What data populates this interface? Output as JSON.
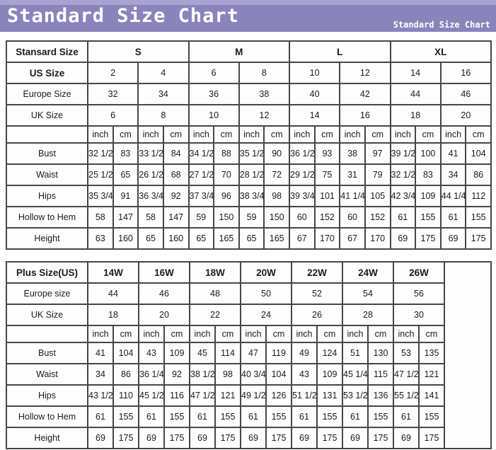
{
  "header": {
    "title": "Standard Size Chart",
    "subtitle": "Standard Size Chart"
  },
  "colors": {
    "header_bar": "#8a84bb",
    "header_bar_top_strip": "#a9a3d1",
    "header_text": "#ffffff",
    "table_border": "#474747",
    "table_background": "#fdfdfd",
    "table_text": "#1b1b1b"
  },
  "chart_data": [
    {
      "type": "table",
      "name": "standard-sizes",
      "corner_label": "Stansard Size",
      "size_groups": [
        "S",
        "M",
        "L",
        "XL"
      ],
      "size_rows": [
        {
          "label": "US Size",
          "bold": true,
          "values": [
            "2",
            "4",
            "6",
            "8",
            "10",
            "12",
            "14",
            "16"
          ]
        },
        {
          "label": "Europe Size",
          "bold": false,
          "values": [
            "32",
            "34",
            "36",
            "38",
            "40",
            "42",
            "44",
            "46"
          ]
        },
        {
          "label": "UK Size",
          "bold": false,
          "values": [
            "6",
            "8",
            "10",
            "12",
            "14",
            "16",
            "18",
            "20"
          ]
        }
      ],
      "unit_headers": [
        "inch",
        "cm"
      ],
      "measure_rows": [
        {
          "label": "Bust",
          "values": [
            "32 1/2",
            "83",
            "33 1/2",
            "84",
            "34 1/2",
            "88",
            "35 1/2",
            "90",
            "36 1/2",
            "93",
            "38",
            "97",
            "39 1/2",
            "100",
            "41",
            "104"
          ]
        },
        {
          "label": "Waist",
          "values": [
            "25 1/2",
            "65",
            "26 1/2",
            "68",
            "27 1/2",
            "70",
            "28 1/2",
            "72",
            "29 1/2",
            "75",
            "31",
            "79",
            "32 1/2",
            "83",
            "34",
            "86"
          ]
        },
        {
          "label": "Hips",
          "values": [
            "35 3/4",
            "91",
            "36 3/4",
            "92",
            "37 3/4",
            "96",
            "38 3/4",
            "98",
            "39 3/4",
            "101",
            "41 1/4",
            "105",
            "42 3/4",
            "109",
            "44 1/4",
            "112"
          ]
        },
        {
          "label": "Hollow to Hem",
          "values": [
            "58",
            "147",
            "58",
            "147",
            "59",
            "150",
            "59",
            "150",
            "60",
            "152",
            "60",
            "152",
            "61",
            "155",
            "61",
            "155"
          ]
        },
        {
          "label": "Height",
          "values": [
            "63",
            "160",
            "65",
            "160",
            "65",
            "165",
            "65",
            "165",
            "67",
            "170",
            "67",
            "170",
            "69",
            "175",
            "69",
            "175"
          ]
        }
      ],
      "trailing_empty_column": false
    },
    {
      "type": "table",
      "name": "plus-sizes",
      "corner_label": "Plus Size(US)",
      "size_groups": [
        "14W",
        "16W",
        "18W",
        "20W",
        "22W",
        "24W",
        "26W"
      ],
      "size_rows": [
        {
          "label": "Europe size",
          "bold": false,
          "values": [
            "44",
            "46",
            "48",
            "50",
            "52",
            "54",
            "56"
          ]
        },
        {
          "label": "UK Size",
          "bold": false,
          "values": [
            "18",
            "20",
            "22",
            "24",
            "26",
            "28",
            "30"
          ]
        }
      ],
      "unit_headers": [
        "inch",
        "cm"
      ],
      "measure_rows": [
        {
          "label": "Bust",
          "values": [
            "41",
            "104",
            "43",
            "109",
            "45",
            "114",
            "47",
            "119",
            "49",
            "124",
            "51",
            "130",
            "53",
            "135"
          ]
        },
        {
          "label": "Waist",
          "values": [
            "34",
            "86",
            "36 1/4",
            "92",
            "38 1/2",
            "98",
            "40 3/4",
            "104",
            "43",
            "109",
            "45 1/4",
            "115",
            "47 1/2",
            "121"
          ]
        },
        {
          "label": "Hips",
          "values": [
            "43 1/2",
            "110",
            "45 1/2",
            "116",
            "47 1/2",
            "121",
            "49 1/2",
            "126",
            "51 1/2",
            "131",
            "53 1/2",
            "136",
            "55 1/2",
            "141"
          ]
        },
        {
          "label": "Hollow to Hem",
          "values": [
            "61",
            "155",
            "61",
            "155",
            "61",
            "155",
            "61",
            "155",
            "61",
            "155",
            "61",
            "155",
            "61",
            "155"
          ]
        },
        {
          "label": "Height",
          "values": [
            "69",
            "175",
            "69",
            "175",
            "69",
            "175",
            "69",
            "175",
            "69",
            "175",
            "69",
            "175",
            "69",
            "175"
          ]
        }
      ],
      "trailing_empty_column": true
    }
  ]
}
